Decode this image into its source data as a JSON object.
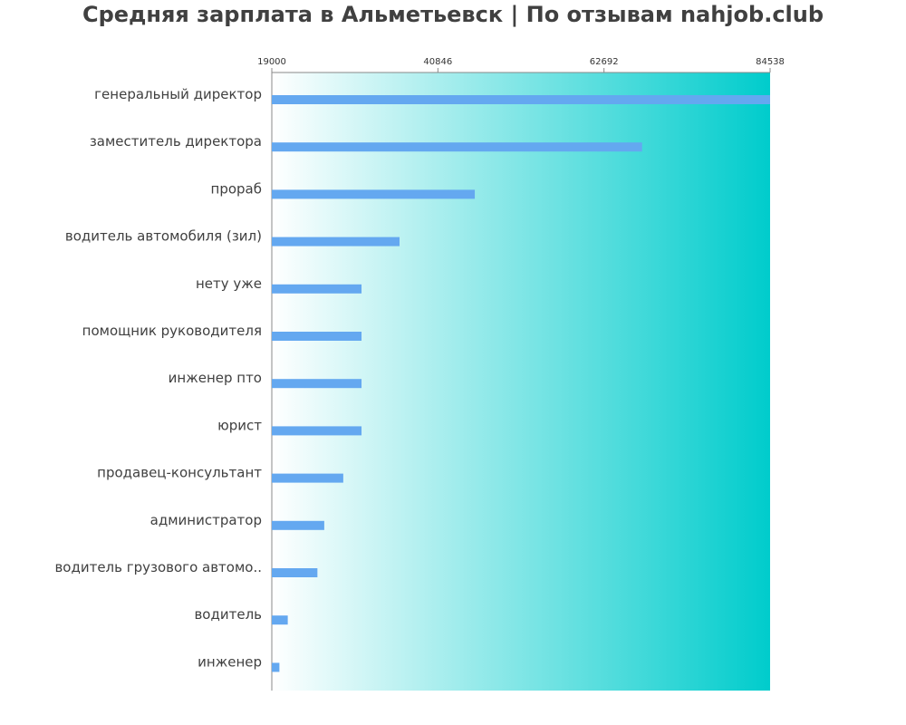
{
  "chart_data": {
    "type": "bar",
    "orientation": "horizontal",
    "title": "Средняя зарплата в Альметьевск | По отзывам nahjob.club",
    "xlabel": "",
    "ylabel": "",
    "xlim": [
      19000,
      84538
    ],
    "x_ticks": [
      "19000",
      "40846",
      "62692",
      "84538"
    ],
    "x_tick_values": [
      19000,
      40846,
      62692,
      84538
    ],
    "x_axis_position": "top",
    "grid": false,
    "categories": [
      "генеральный директор",
      "заместитель директора",
      "прораб",
      "водитель автомобиля (зил)",
      "нету уже",
      "помощник руководителя",
      "инженер пто",
      "юрист",
      "продавец-консультант",
      "администратор",
      "водитель грузового автомо..",
      "водитель",
      "инженер"
    ],
    "values": [
      84538,
      67700,
      45700,
      35800,
      30800,
      30800,
      30800,
      30800,
      28400,
      25900,
      25000,
      21100,
      20000
    ],
    "colors": {
      "bar": "#64a8f0",
      "background_gradient_start": "#ffffff",
      "background_gradient_end": "#00cccc",
      "axis": "#888888",
      "text": "#404040"
    }
  }
}
